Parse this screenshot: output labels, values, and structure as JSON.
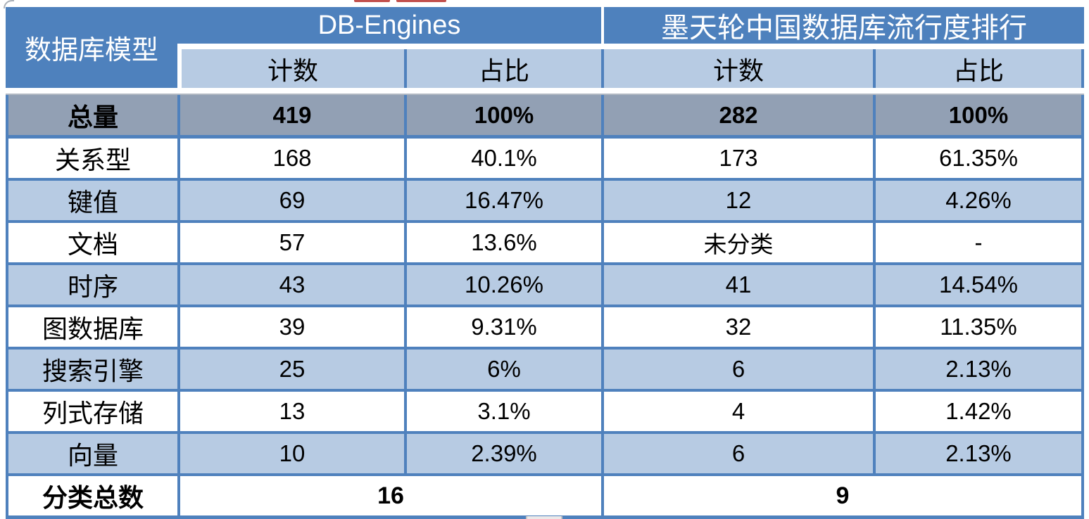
{
  "chart_data": {
    "type": "table",
    "corner_header": "数据库模型",
    "column_groups": [
      {
        "label": "DB-Engines",
        "columns": [
          "计数",
          "占比"
        ]
      },
      {
        "label": "墨天轮中国数据库流行度排行",
        "columns": [
          "计数",
          "占比"
        ]
      }
    ],
    "sub_headers": [
      "计数",
      "占比",
      "计数",
      "占比"
    ],
    "rows": [
      {
        "label": "总量",
        "values": [
          "419",
          "100%",
          "282",
          "100%"
        ],
        "bold": true,
        "style": "gray"
      },
      {
        "label": "关系型",
        "values": [
          "168",
          "40.1%",
          "173",
          "61.35%"
        ]
      },
      {
        "label": "键值",
        "values": [
          "69",
          "16.47%",
          "12",
          "4.26%"
        ]
      },
      {
        "label": "文档",
        "values": [
          "57",
          "13.6%",
          "未分类",
          "-"
        ]
      },
      {
        "label": "时序",
        "values": [
          "43",
          "10.26%",
          "41",
          "14.54%"
        ]
      },
      {
        "label": "图数据库",
        "values": [
          "39",
          "9.31%",
          "32",
          "11.35%"
        ]
      },
      {
        "label": "搜索引擎",
        "values": [
          "25",
          "6%",
          "6",
          "2.13%"
        ]
      },
      {
        "label": "列式存储",
        "values": [
          "13",
          "3.1%",
          "4",
          "1.42%"
        ]
      },
      {
        "label": "向量",
        "values": [
          "10",
          "2.39%",
          "6",
          "2.13%"
        ]
      }
    ],
    "footer": {
      "label": "分类总数",
      "values": [
        "16",
        "9"
      ]
    },
    "layout_hints": {
      "banding": "white / light-blue alternating data rows, gray bold totals row, merged footer cells"
    }
  },
  "colors": {
    "header_blue": "#4E81BD",
    "border_blue": "#4F81BD",
    "band_light_blue": "#B7CBE3",
    "totals_gray": "#92A0B4",
    "text_black": "#000000",
    "header_text_white": "#ffffff",
    "artifact_red": "#C14F4C",
    "artifact_gray_tab": "#ECE9E9"
  }
}
